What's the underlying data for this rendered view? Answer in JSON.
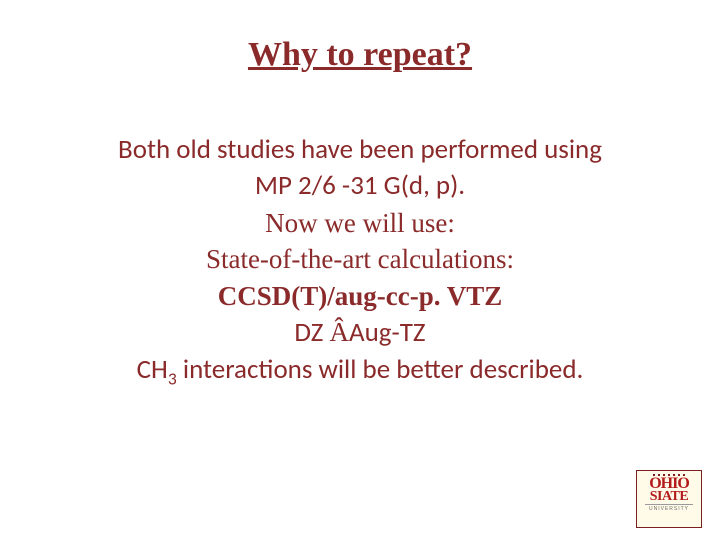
{
  "colors": {
    "title": "#8a2a2a",
    "body": "#8a2a2a",
    "background": "#ffffff",
    "logo_red": "#b31b1b",
    "logo_border": "#7a1e1e"
  },
  "title": "Why to repeat?",
  "lines": {
    "l1": "Both old studies have been performed using",
    "l2": "MP 2/6 -31 G(d, p).",
    "l3": "Now we will use:",
    "l4": "State-of-the-art calculations:",
    "l5": "CCSD(T)/aug-cc-p. VTZ",
    "l6_pre": "DZ ",
    "l6_arrow": "Â",
    "l6_post": "Aug-TZ",
    "l7_pre": "CH",
    "l7_sub": "3",
    "l7_post": " interactions will be better described."
  },
  "logo": {
    "line1": "OHIO",
    "line2": "SIATE",
    "line3": "UNIVERSITY"
  }
}
